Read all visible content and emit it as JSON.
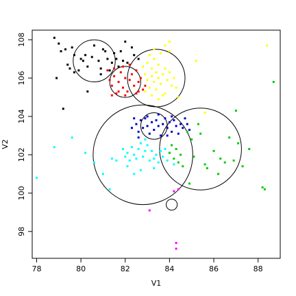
{
  "chart_data": {
    "type": "scatter",
    "title": "",
    "xlabel": "V1",
    "ylabel": "V2",
    "xlim": [
      77.8,
      89.0
    ],
    "ylim": [
      96.6,
      108.5
    ],
    "x_ticks": [
      78,
      80,
      82,
      84,
      86,
      88
    ],
    "y_ticks": [
      98,
      100,
      102,
      104,
      106,
      108
    ],
    "grid": false,
    "colors": {
      "black": "#000000",
      "red": "#ff0000",
      "yellow": "#ffff00",
      "blue": "#0000cc",
      "cyan": "#00ffff",
      "green": "#00cc00",
      "magenta": "#ff00ff"
    },
    "series": [
      {
        "color": "black",
        "points": [
          [
            78.8,
            108.1
          ],
          [
            79.0,
            107.8
          ],
          [
            79.1,
            107.4
          ],
          [
            79.3,
            107.5
          ],
          [
            79.6,
            107.6
          ],
          [
            79.7,
            107.2
          ],
          [
            80.0,
            107.0
          ],
          [
            80.1,
            106.9
          ],
          [
            80.2,
            107.2
          ],
          [
            80.3,
            106.6
          ],
          [
            80.5,
            107.1
          ],
          [
            80.6,
            107.7
          ],
          [
            80.8,
            106.9
          ],
          [
            80.9,
            106.5
          ],
          [
            81.0,
            107.5
          ],
          [
            81.1,
            107.4
          ],
          [
            81.2,
            107.0
          ],
          [
            81.4,
            106.8
          ],
          [
            81.5,
            107.3
          ],
          [
            81.6,
            107.0
          ],
          [
            81.7,
            106.6
          ],
          [
            81.8,
            107.4
          ],
          [
            81.9,
            106.9
          ],
          [
            82.0,
            107.9
          ],
          [
            82.3,
            107.6
          ],
          [
            82.4,
            107.2
          ],
          [
            82.6,
            107.0
          ],
          [
            82.1,
            106.8
          ],
          [
            79.5,
            106.5
          ],
          [
            79.7,
            106.3
          ],
          [
            79.9,
            106.4
          ],
          [
            79.4,
            106.7
          ],
          [
            78.9,
            106.0
          ],
          [
            79.2,
            104.4
          ],
          [
            80.3,
            105.3
          ],
          [
            80.9,
            106.2
          ],
          [
            81.3,
            106.4
          ]
        ]
      },
      {
        "color": "red",
        "points": [
          [
            81.2,
            106.4
          ],
          [
            81.3,
            105.9
          ],
          [
            81.4,
            105.6
          ],
          [
            81.5,
            106.1
          ],
          [
            81.6,
            105.2
          ],
          [
            81.7,
            105.8
          ],
          [
            81.8,
            106.3
          ],
          [
            81.9,
            105.5
          ],
          [
            82.0,
            106.0
          ],
          [
            82.1,
            105.3
          ],
          [
            82.2,
            105.9
          ],
          [
            82.3,
            106.2
          ],
          [
            82.4,
            105.6
          ],
          [
            82.5,
            105.2
          ],
          [
            82.6,
            105.8
          ],
          [
            82.7,
            106.0
          ],
          [
            82.8,
            105.4
          ],
          [
            81.5,
            106.5
          ],
          [
            81.9,
            106.6
          ],
          [
            82.2,
            106.7
          ],
          [
            82.5,
            106.4
          ],
          [
            82.0,
            105.1
          ],
          [
            81.7,
            105.3
          ],
          [
            82.9,
            105.6
          ],
          [
            82.6,
            105.3
          ],
          [
            81.4,
            105.1
          ]
        ]
      },
      {
        "color": "yellow",
        "points": [
          [
            82.8,
            106.6
          ],
          [
            82.9,
            106.2
          ],
          [
            83.0,
            105.9
          ],
          [
            83.0,
            106.8
          ],
          [
            83.1,
            105.5
          ],
          [
            83.2,
            106.1
          ],
          [
            83.2,
            106.5
          ],
          [
            83.3,
            105.8
          ],
          [
            83.3,
            107.0
          ],
          [
            83.4,
            106.3
          ],
          [
            83.4,
            105.4
          ],
          [
            83.5,
            106.0
          ],
          [
            83.5,
            106.7
          ],
          [
            83.6,
            105.7
          ],
          [
            83.7,
            106.2
          ],
          [
            83.7,
            105.1
          ],
          [
            83.8,
            106.5
          ],
          [
            83.9,
            105.9
          ],
          [
            84.0,
            106.3
          ],
          [
            84.1,
            105.6
          ],
          [
            84.2,
            106.0
          ],
          [
            83.1,
            107.2
          ],
          [
            83.3,
            107.5
          ],
          [
            83.6,
            107.3
          ],
          [
            84.0,
            107.4
          ],
          [
            82.9,
            105.3
          ],
          [
            83.2,
            105.1
          ],
          [
            83.8,
            105.2
          ],
          [
            84.3,
            105.5
          ],
          [
            84.4,
            105.0
          ],
          [
            85.2,
            106.9
          ],
          [
            85.6,
            104.2
          ],
          [
            83.8,
            107.7
          ],
          [
            84.0,
            107.9
          ],
          [
            83.5,
            104.9
          ],
          [
            88.4,
            107.7
          ]
        ]
      },
      {
        "color": "blue",
        "points": [
          [
            82.3,
            103.4
          ],
          [
            82.4,
            103.9
          ],
          [
            82.5,
            103.6
          ],
          [
            82.6,
            103.2
          ],
          [
            82.7,
            103.8
          ],
          [
            82.8,
            103.4
          ],
          [
            82.9,
            103.9
          ],
          [
            83.0,
            103.5
          ],
          [
            83.1,
            103.1
          ],
          [
            83.2,
            103.7
          ],
          [
            83.3,
            103.3
          ],
          [
            83.4,
            103.8
          ],
          [
            83.5,
            103.5
          ],
          [
            83.6,
            103.0
          ],
          [
            83.7,
            103.6
          ],
          [
            83.8,
            103.9
          ],
          [
            83.9,
            103.4
          ],
          [
            84.0,
            103.7
          ],
          [
            84.1,
            103.2
          ],
          [
            84.2,
            103.8
          ],
          [
            84.3,
            103.5
          ],
          [
            84.4,
            103.1
          ],
          [
            84.5,
            103.6
          ],
          [
            84.6,
            103.4
          ],
          [
            84.7,
            103.9
          ],
          [
            84.8,
            103.6
          ],
          [
            83.0,
            104.0
          ],
          [
            83.5,
            104.1
          ],
          [
            84.1,
            104.0
          ],
          [
            82.6,
            102.9
          ],
          [
            83.9,
            103.0
          ],
          [
            84.9,
            103.3
          ]
        ]
      },
      {
        "color": "cyan",
        "points": [
          [
            78.0,
            100.8
          ],
          [
            78.8,
            102.4
          ],
          [
            79.6,
            102.9
          ],
          [
            80.2,
            102.1
          ],
          [
            81.0,
            101.0
          ],
          [
            81.3,
            100.2
          ],
          [
            81.4,
            101.8
          ],
          [
            81.9,
            102.3
          ],
          [
            82.0,
            101.9
          ],
          [
            82.1,
            102.1
          ],
          [
            82.2,
            101.7
          ],
          [
            82.3,
            102.4
          ],
          [
            82.4,
            102.0
          ],
          [
            82.5,
            101.8
          ],
          [
            82.6,
            102.3
          ],
          [
            82.7,
            102.6
          ],
          [
            82.8,
            101.9
          ],
          [
            82.9,
            102.2
          ],
          [
            83.0,
            102.5
          ],
          [
            83.1,
            101.7
          ],
          [
            83.2,
            102.2
          ],
          [
            83.3,
            101.8
          ],
          [
            83.4,
            102.0
          ],
          [
            83.5,
            101.6
          ],
          [
            83.6,
            102.2
          ],
          [
            83.7,
            101.9
          ],
          [
            83.8,
            102.3
          ],
          [
            83.9,
            101.7
          ],
          [
            84.0,
            102.1
          ],
          [
            82.1,
            101.4
          ],
          [
            82.4,
            101.0
          ],
          [
            82.7,
            101.2
          ],
          [
            83.3,
            101.3
          ],
          [
            81.6,
            101.7
          ],
          [
            80.6,
            101.6
          ],
          [
            82.9,
            102.8
          ],
          [
            84.2,
            101.5
          ]
        ]
      },
      {
        "color": "green",
        "points": [
          [
            84.0,
            102.1
          ],
          [
            84.1,
            102.5
          ],
          [
            84.2,
            101.8
          ],
          [
            84.3,
            102.3
          ],
          [
            84.4,
            101.6
          ],
          [
            84.5,
            102.0
          ],
          [
            84.6,
            101.4
          ],
          [
            84.8,
            103.2
          ],
          [
            85.0,
            102.8
          ],
          [
            85.1,
            101.9
          ],
          [
            85.3,
            103.6
          ],
          [
            85.4,
            103.1
          ],
          [
            85.6,
            101.5
          ],
          [
            86.0,
            102.2
          ],
          [
            86.2,
            101.0
          ],
          [
            86.3,
            101.8
          ],
          [
            86.5,
            101.6
          ],
          [
            86.7,
            102.9
          ],
          [
            86.9,
            101.7
          ],
          [
            87.0,
            104.3
          ],
          [
            87.1,
            102.6
          ],
          [
            87.3,
            101.4
          ],
          [
            87.6,
            102.3
          ],
          [
            88.2,
            100.3
          ],
          [
            88.3,
            100.2
          ],
          [
            88.7,
            105.8
          ],
          [
            84.9,
            100.5
          ],
          [
            85.7,
            101.3
          ]
        ]
      },
      {
        "color": "magenta",
        "points": [
          [
            84.3,
            97.4
          ],
          [
            84.3,
            97.1
          ],
          [
            84.2,
            100.1
          ],
          [
            83.1,
            99.1
          ],
          [
            84.4,
            100.2
          ]
        ]
      }
    ],
    "circles": [
      {
        "center": [
          80.6,
          106.9
        ],
        "radius": 0.95
      },
      {
        "center": [
          82.0,
          105.8
        ],
        "radius": 0.7
      },
      {
        "center": [
          83.4,
          106.0
        ],
        "radius": 1.3
      },
      {
        "center": [
          83.3,
          103.5
        ],
        "radius": 0.6
      },
      {
        "center": [
          82.8,
          102.0
        ],
        "radius": 2.25
      },
      {
        "center": [
          85.4,
          102.3
        ],
        "radius": 1.85
      },
      {
        "center": [
          84.1,
          99.4
        ],
        "radius": 0.25
      }
    ]
  }
}
